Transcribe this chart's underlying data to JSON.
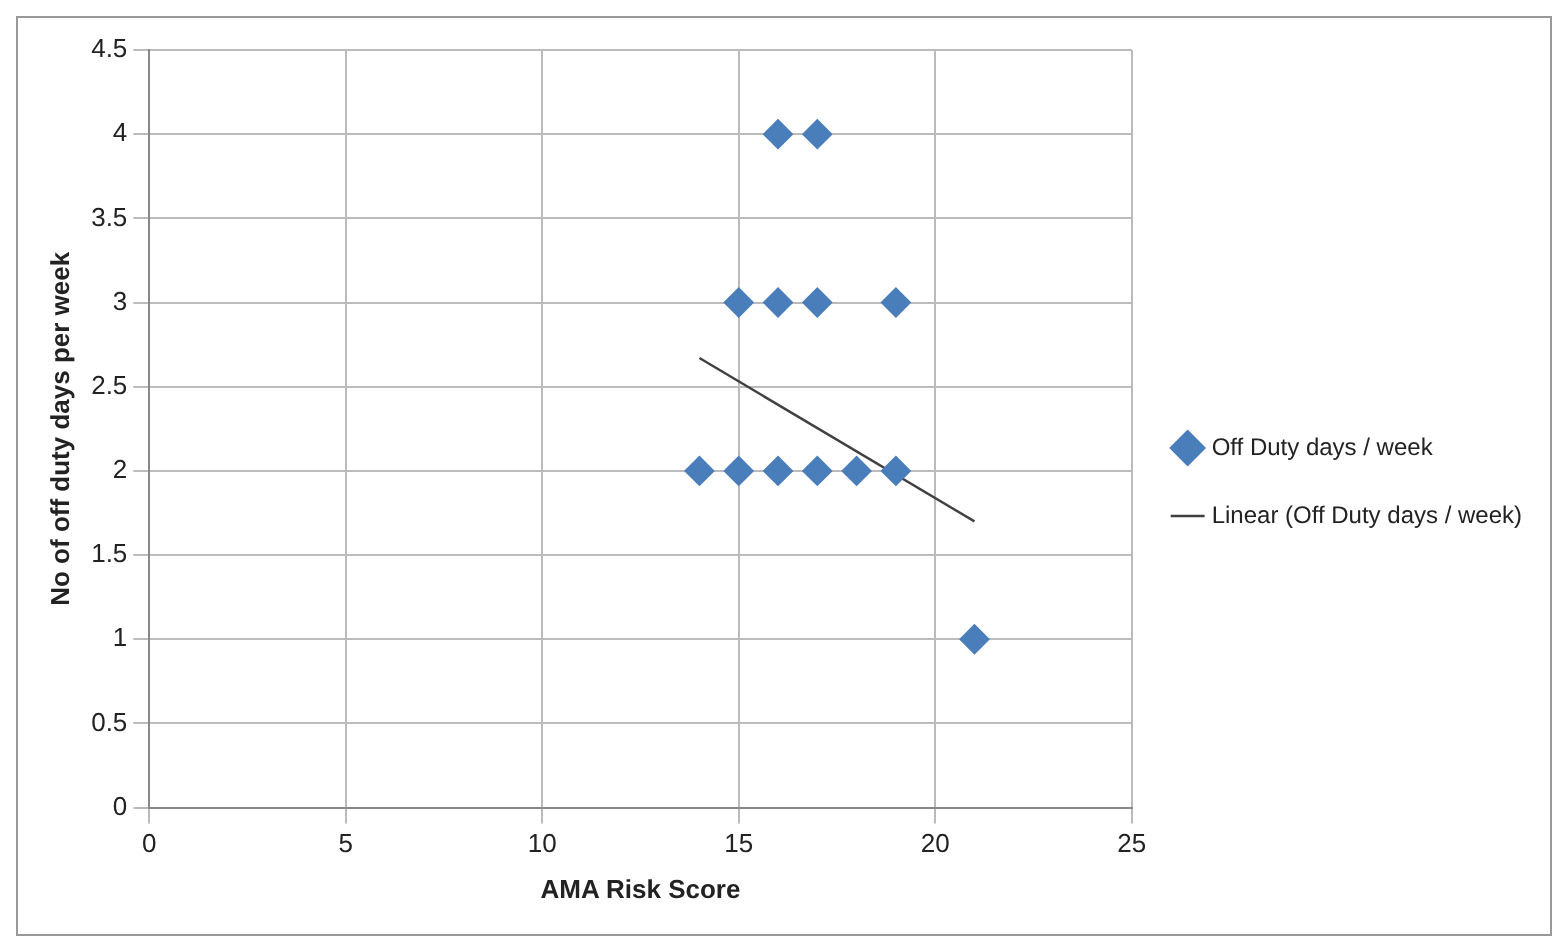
{
  "chart_data": {
    "type": "scatter",
    "xlabel": "AMA Risk Score",
    "ylabel": "No of off duty days per week",
    "xlim": [
      0,
      25
    ],
    "xticks": [
      0,
      5,
      10,
      15,
      20,
      25
    ],
    "ylim": [
      0,
      4.5
    ],
    "yticks": [
      0,
      0.5,
      1,
      1.5,
      2,
      2.5,
      3,
      3.5,
      4,
      4.5
    ],
    "grid": true,
    "legend": "right",
    "marker": "diamond",
    "series": [
      {
        "name": "Off Duty days / week",
        "color": "#4a7ebb",
        "x": [
          16,
          17,
          15,
          16,
          17,
          19,
          14,
          15,
          16,
          17,
          18,
          19,
          21
        ],
        "values": [
          4,
          4,
          3,
          3,
          3,
          3,
          2,
          2,
          2,
          2,
          2,
          2,
          1
        ]
      },
      {
        "name": "Linear (Off Duty days / week)",
        "type": "line",
        "color": "#404040",
        "marker": "none",
        "x": [
          14,
          21
        ],
        "values": [
          2.67,
          1.7
        ]
      }
    ]
  }
}
